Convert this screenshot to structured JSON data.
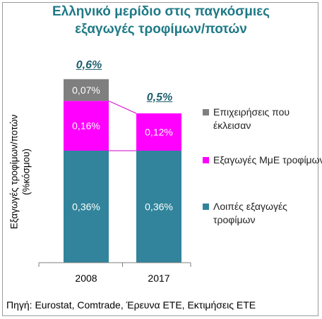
{
  "title_lines": [
    "Ελληνικό μερίδιο στις παγκόσμιες",
    "εξαγωγές τροφίμων/ποτών"
  ],
  "ylabel_lines": [
    "Εξαγωγές τροφίμων/ποτών",
    "(%κόσμου)"
  ],
  "source": "Πηγή: Eurostat, Comtrade, Έρευνα ΕΤΕ, Εκτιμήσεις ΕΤΕ",
  "colors": {
    "closed": "#7f7f7f",
    "sme": "#ff00ff",
    "other": "#31849b",
    "title": "#1f7a86",
    "total": "#1f5f6e"
  },
  "chart_data": {
    "type": "bar",
    "stacked": true,
    "categories": [
      "2008",
      "2017"
    ],
    "series": [
      {
        "name": "Λοιπές εξαγωγές τροφίμων",
        "values": [
          0.36,
          0.36
        ],
        "labels": [
          "0,36%",
          "0,36%"
        ],
        "color": "#31849b"
      },
      {
        "name": "Εξαγωγές ΜμΕ τροφίμων",
        "values": [
          0.16,
          0.12
        ],
        "labels": [
          "0,16%",
          "0,12%"
        ],
        "color": "#ff00ff"
      },
      {
        "name": "Επιχειρήσεις που έκλεισαν",
        "values": [
          0.07,
          0
        ],
        "labels": [
          "0,07%",
          ""
        ],
        "color": "#7f7f7f"
      }
    ],
    "totals": [
      "0,6%",
      "0,5%"
    ],
    "legend": [
      "Επιχειρήσεις που έκλεισαν",
      "Εξαγωγές ΜμΕ τροφίμων",
      "Λοιπές εξαγωγές τροφίμων"
    ],
    "legend_position": "right",
    "ylim": [
      0,
      0.6
    ],
    "grid": false
  }
}
